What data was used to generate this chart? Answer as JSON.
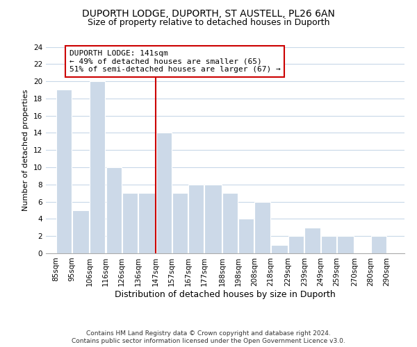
{
  "title": "DUPORTH LODGE, DUPORTH, ST AUSTELL, PL26 6AN",
  "subtitle": "Size of property relative to detached houses in Duporth",
  "xlabel": "Distribution of detached houses by size in Duporth",
  "ylabel": "Number of detached properties",
  "bar_color": "#ccd9e8",
  "bar_edge_color": "#ffffff",
  "grid_color": "#c8d8e8",
  "vline_color": "#cc0000",
  "annotation_title": "DUPORTH LODGE: 141sqm",
  "annotation_line1": "← 49% of detached houses are smaller (65)",
  "annotation_line2": "51% of semi-detached houses are larger (67) →",
  "footer1": "Contains HM Land Registry data © Crown copyright and database right 2024.",
  "footer2": "Contains public sector information licensed under the Open Government Licence v3.0.",
  "bins": [
    85,
    95,
    106,
    116,
    126,
    136,
    147,
    157,
    167,
    177,
    188,
    198,
    208,
    218,
    229,
    239,
    249,
    259,
    270,
    280,
    290
  ],
  "counts": [
    19,
    5,
    20,
    10,
    7,
    7,
    14,
    7,
    8,
    8,
    7,
    4,
    6,
    1,
    2,
    3,
    2,
    2,
    0,
    2
  ],
  "ylim": [
    0,
    24
  ],
  "yticks": [
    0,
    2,
    4,
    6,
    8,
    10,
    12,
    14,
    16,
    18,
    20,
    22,
    24
  ],
  "title_fontsize": 10,
  "subtitle_fontsize": 9,
  "xlabel_fontsize": 9,
  "ylabel_fontsize": 8,
  "tick_fontsize": 7.5,
  "annotation_fontsize": 8,
  "annotation_box_color": "#ffffff",
  "annotation_box_edge": "#cc0000",
  "footer_fontsize": 6.5,
  "background_color": "#ffffff"
}
